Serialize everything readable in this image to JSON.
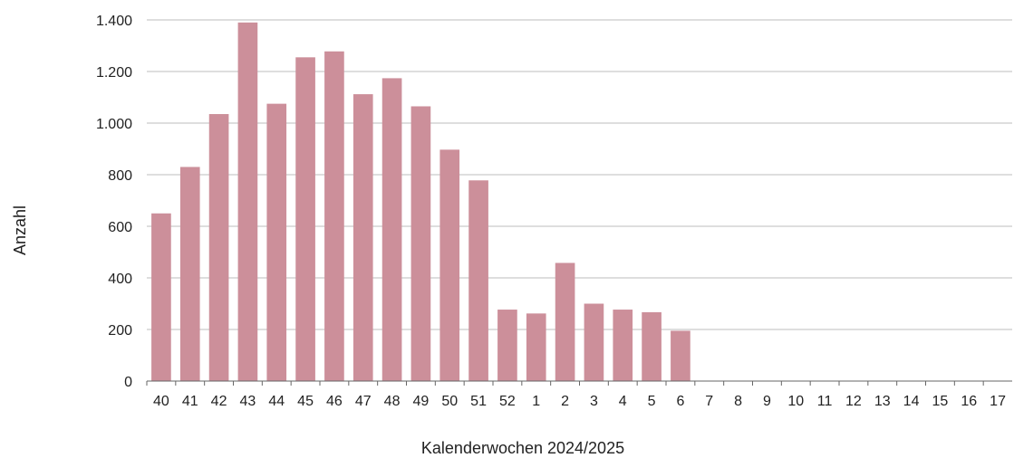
{
  "chart_data": {
    "type": "bar",
    "xlabel": "Kalenderwochen 2024/2025",
    "ylabel": "Anzahl",
    "ylim": [
      0,
      1400
    ],
    "yticks": [
      0,
      200,
      400,
      600,
      800,
      1000,
      1200,
      1400
    ],
    "ytick_labels": [
      "0",
      "200",
      "400",
      "600",
      "800",
      "1.000",
      "1.200",
      "1.400"
    ],
    "grid": true,
    "bar_color": "#cc8f9a",
    "categories": [
      "40",
      "41",
      "42",
      "43",
      "44",
      "45",
      "46",
      "47",
      "48",
      "49",
      "50",
      "51",
      "52",
      "1",
      "2",
      "3",
      "4",
      "5",
      "6",
      "7",
      "8",
      "9",
      "10",
      "11",
      "12",
      "13",
      "14",
      "15",
      "16",
      "17"
    ],
    "values": [
      650,
      830,
      1035,
      1390,
      1075,
      1255,
      1278,
      1112,
      1174,
      1065,
      897,
      778,
      277,
      262,
      458,
      300,
      277,
      267,
      195,
      0,
      0,
      0,
      0,
      0,
      0,
      0,
      0,
      0,
      0,
      0
    ]
  }
}
